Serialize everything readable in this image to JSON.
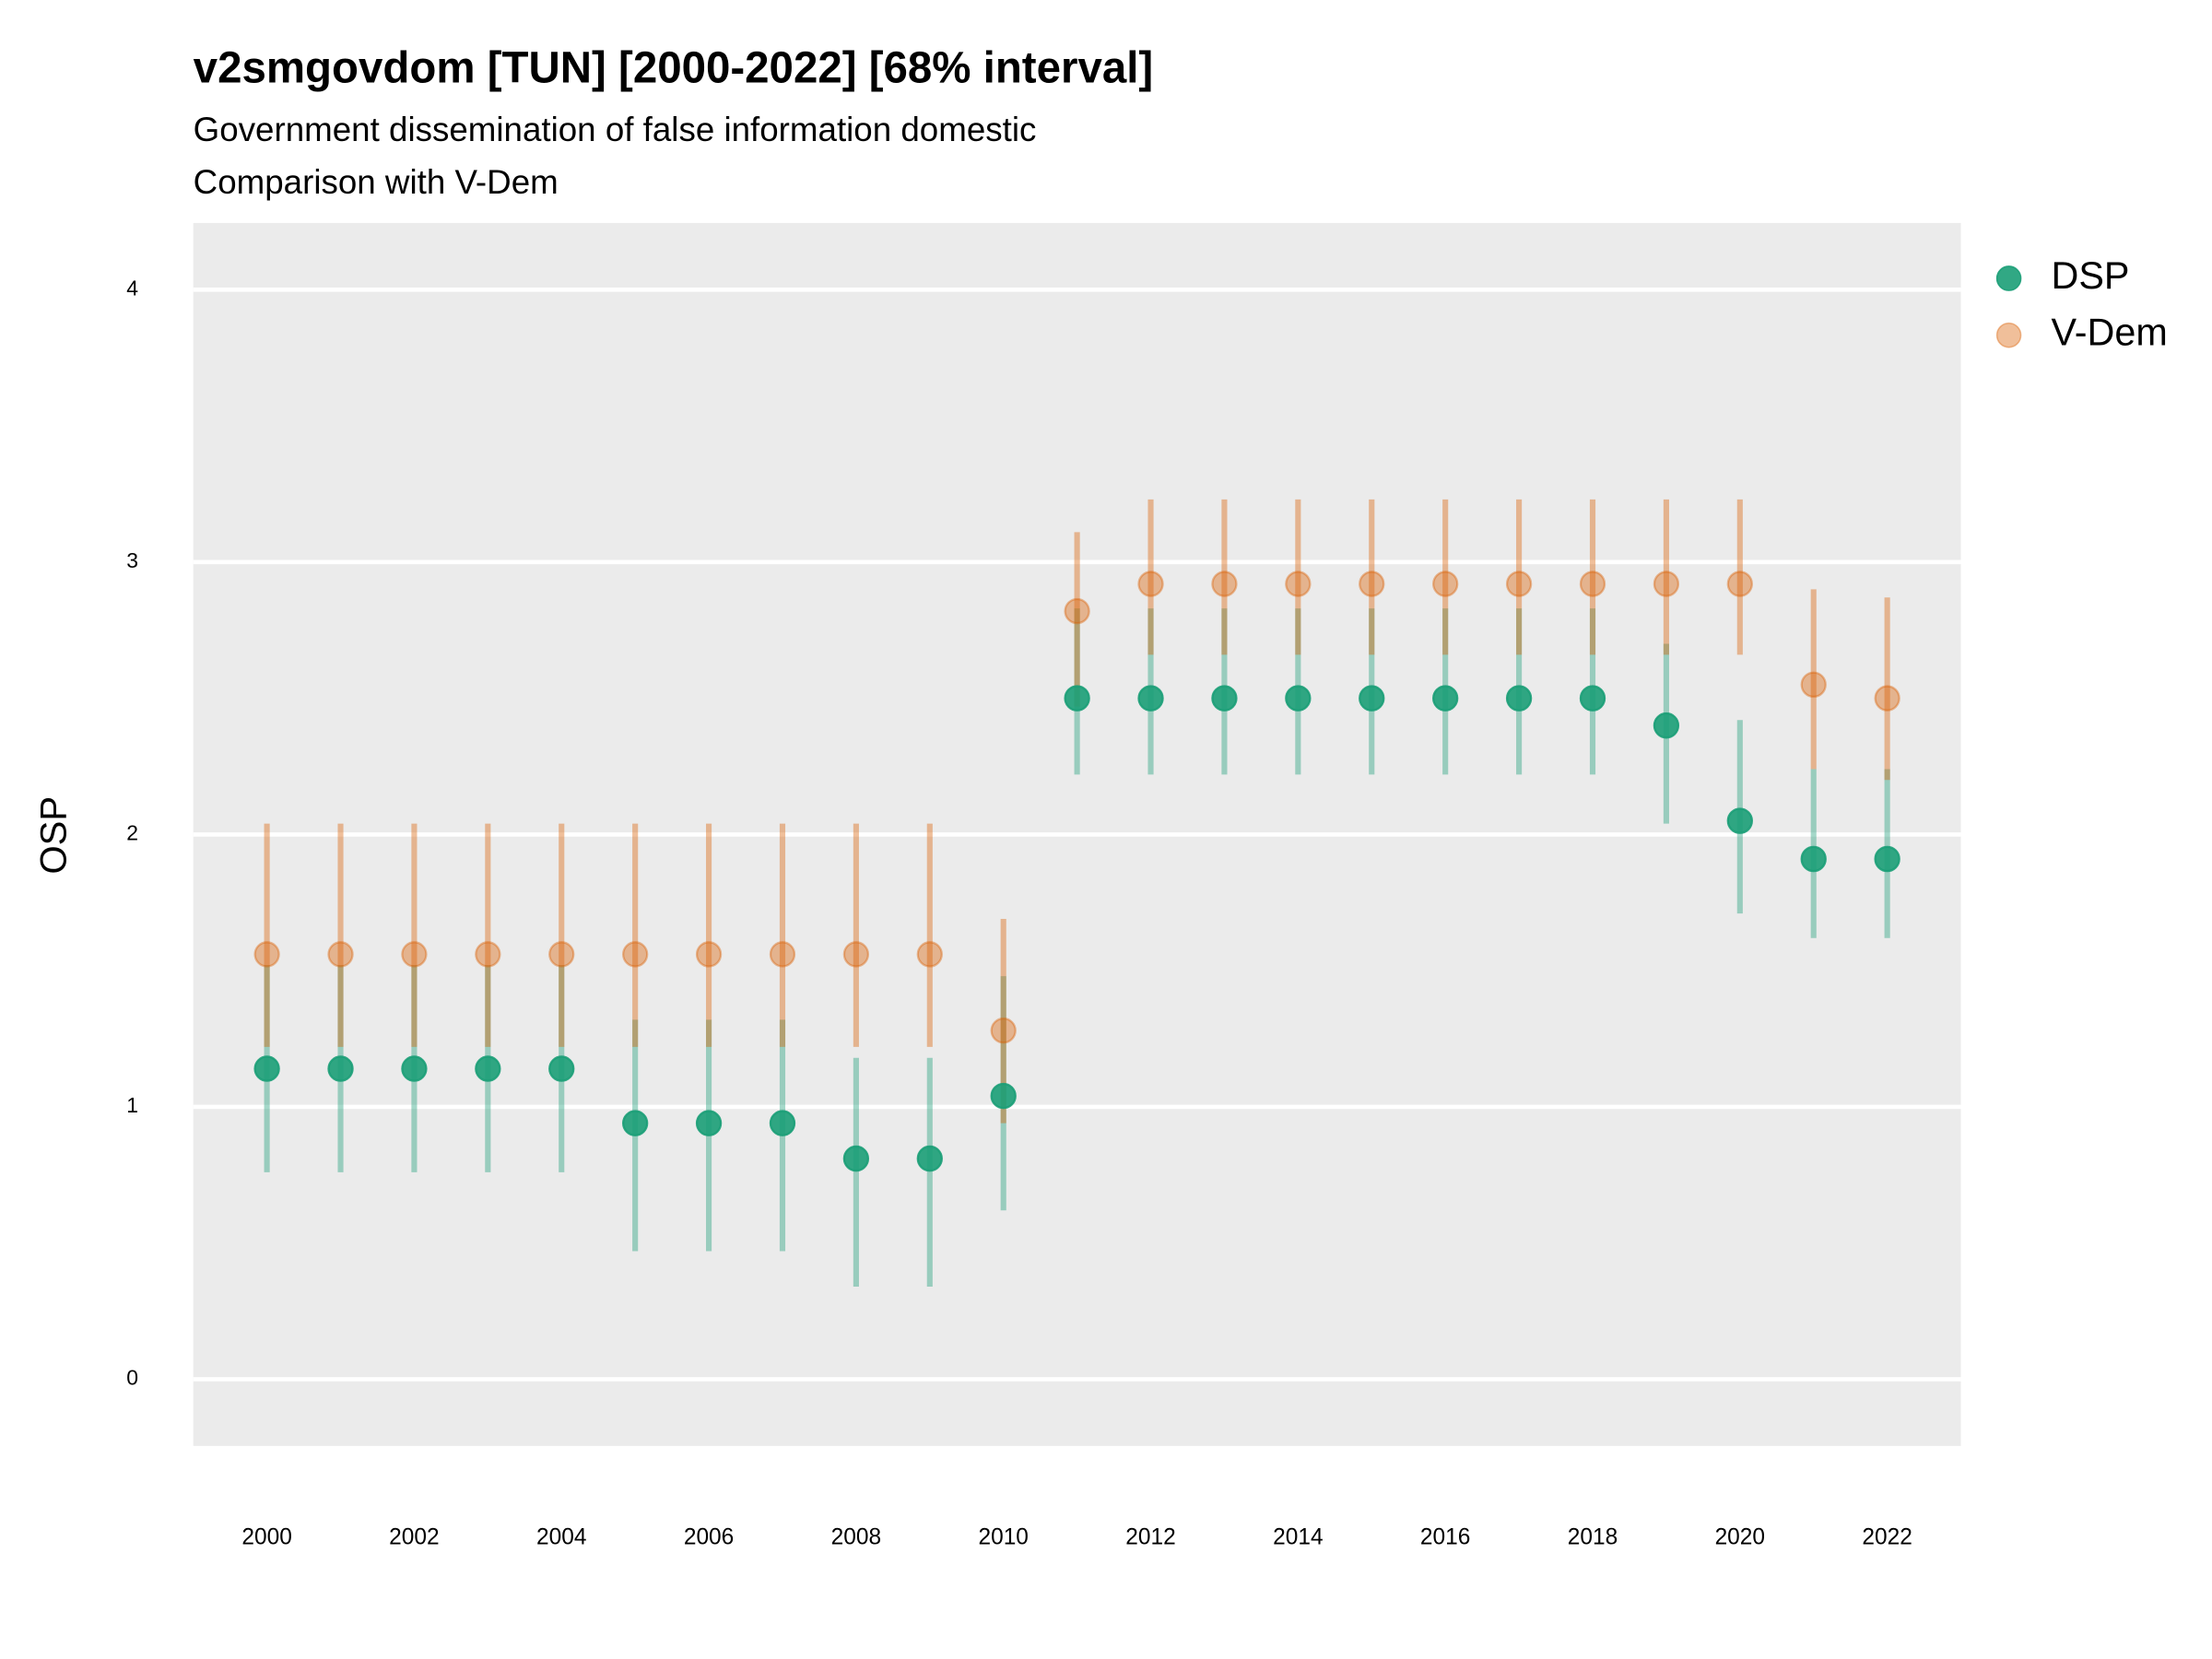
{
  "chart_data": {
    "type": "pointrange",
    "title": "v2smgovdom [TUN] [2000-2022] [68% interval]",
    "subtitle": [
      "Government dissemination of false information domestic",
      "Comparison with V-Dem"
    ],
    "y_label": "OSP",
    "x": [
      2000,
      2001,
      2002,
      2003,
      2004,
      2005,
      2006,
      2007,
      2008,
      2009,
      2010,
      2011,
      2012,
      2013,
      2014,
      2015,
      2016,
      2017,
      2018,
      2019,
      2020,
      2021,
      2022
    ],
    "series": [
      {
        "name": "DSP",
        "color": "#1b9e77",
        "values": [
          1.14,
          1.14,
          1.14,
          1.14,
          1.14,
          0.94,
          0.94,
          0.94,
          0.81,
          0.81,
          1.04,
          2.5,
          2.5,
          2.5,
          2.5,
          2.5,
          2.5,
          2.5,
          2.5,
          2.4,
          2.05,
          1.91,
          1.91
        ],
        "lower": [
          0.76,
          0.76,
          0.76,
          0.76,
          0.76,
          0.47,
          0.47,
          0.47,
          0.34,
          0.34,
          0.62,
          2.22,
          2.22,
          2.22,
          2.22,
          2.22,
          2.22,
          2.22,
          2.22,
          2.04,
          1.71,
          1.62,
          1.62
        ],
        "upper": [
          1.52,
          1.52,
          1.52,
          1.52,
          1.52,
          1.32,
          1.32,
          1.32,
          1.18,
          1.18,
          1.48,
          2.83,
          2.83,
          2.83,
          2.83,
          2.83,
          2.83,
          2.83,
          2.83,
          2.7,
          2.42,
          2.24,
          2.24
        ]
      },
      {
        "name": "V-Dem",
        "color": "#d95f02",
        "values": [
          1.56,
          1.56,
          1.56,
          1.56,
          1.56,
          1.56,
          1.56,
          1.56,
          1.56,
          1.56,
          1.28,
          2.82,
          2.92,
          2.92,
          2.92,
          2.92,
          2.92,
          2.92,
          2.92,
          2.92,
          2.92,
          2.55,
          2.5
        ],
        "lower": [
          1.22,
          1.22,
          1.22,
          1.22,
          1.22,
          1.22,
          1.22,
          1.22,
          1.22,
          1.22,
          0.94,
          2.47,
          2.66,
          2.66,
          2.66,
          2.66,
          2.66,
          2.66,
          2.66,
          2.66,
          2.66,
          2.24,
          2.2
        ],
        "upper": [
          2.04,
          2.04,
          2.04,
          2.04,
          2.04,
          2.04,
          2.04,
          2.04,
          2.04,
          2.04,
          1.69,
          3.11,
          3.23,
          3.23,
          3.23,
          3.23,
          3.23,
          3.23,
          3.23,
          3.23,
          3.23,
          2.9,
          2.87
        ]
      }
    ],
    "xlim": [
      1999,
      2023
    ],
    "xticks": [
      2000,
      2002,
      2004,
      2006,
      2008,
      2010,
      2012,
      2014,
      2016,
      2018,
      2020,
      2022
    ],
    "ylim": [
      -0.245,
      4.245
    ],
    "yticks": [
      0,
      1,
      2,
      3,
      4
    ],
    "grid": true,
    "legend": "right"
  }
}
